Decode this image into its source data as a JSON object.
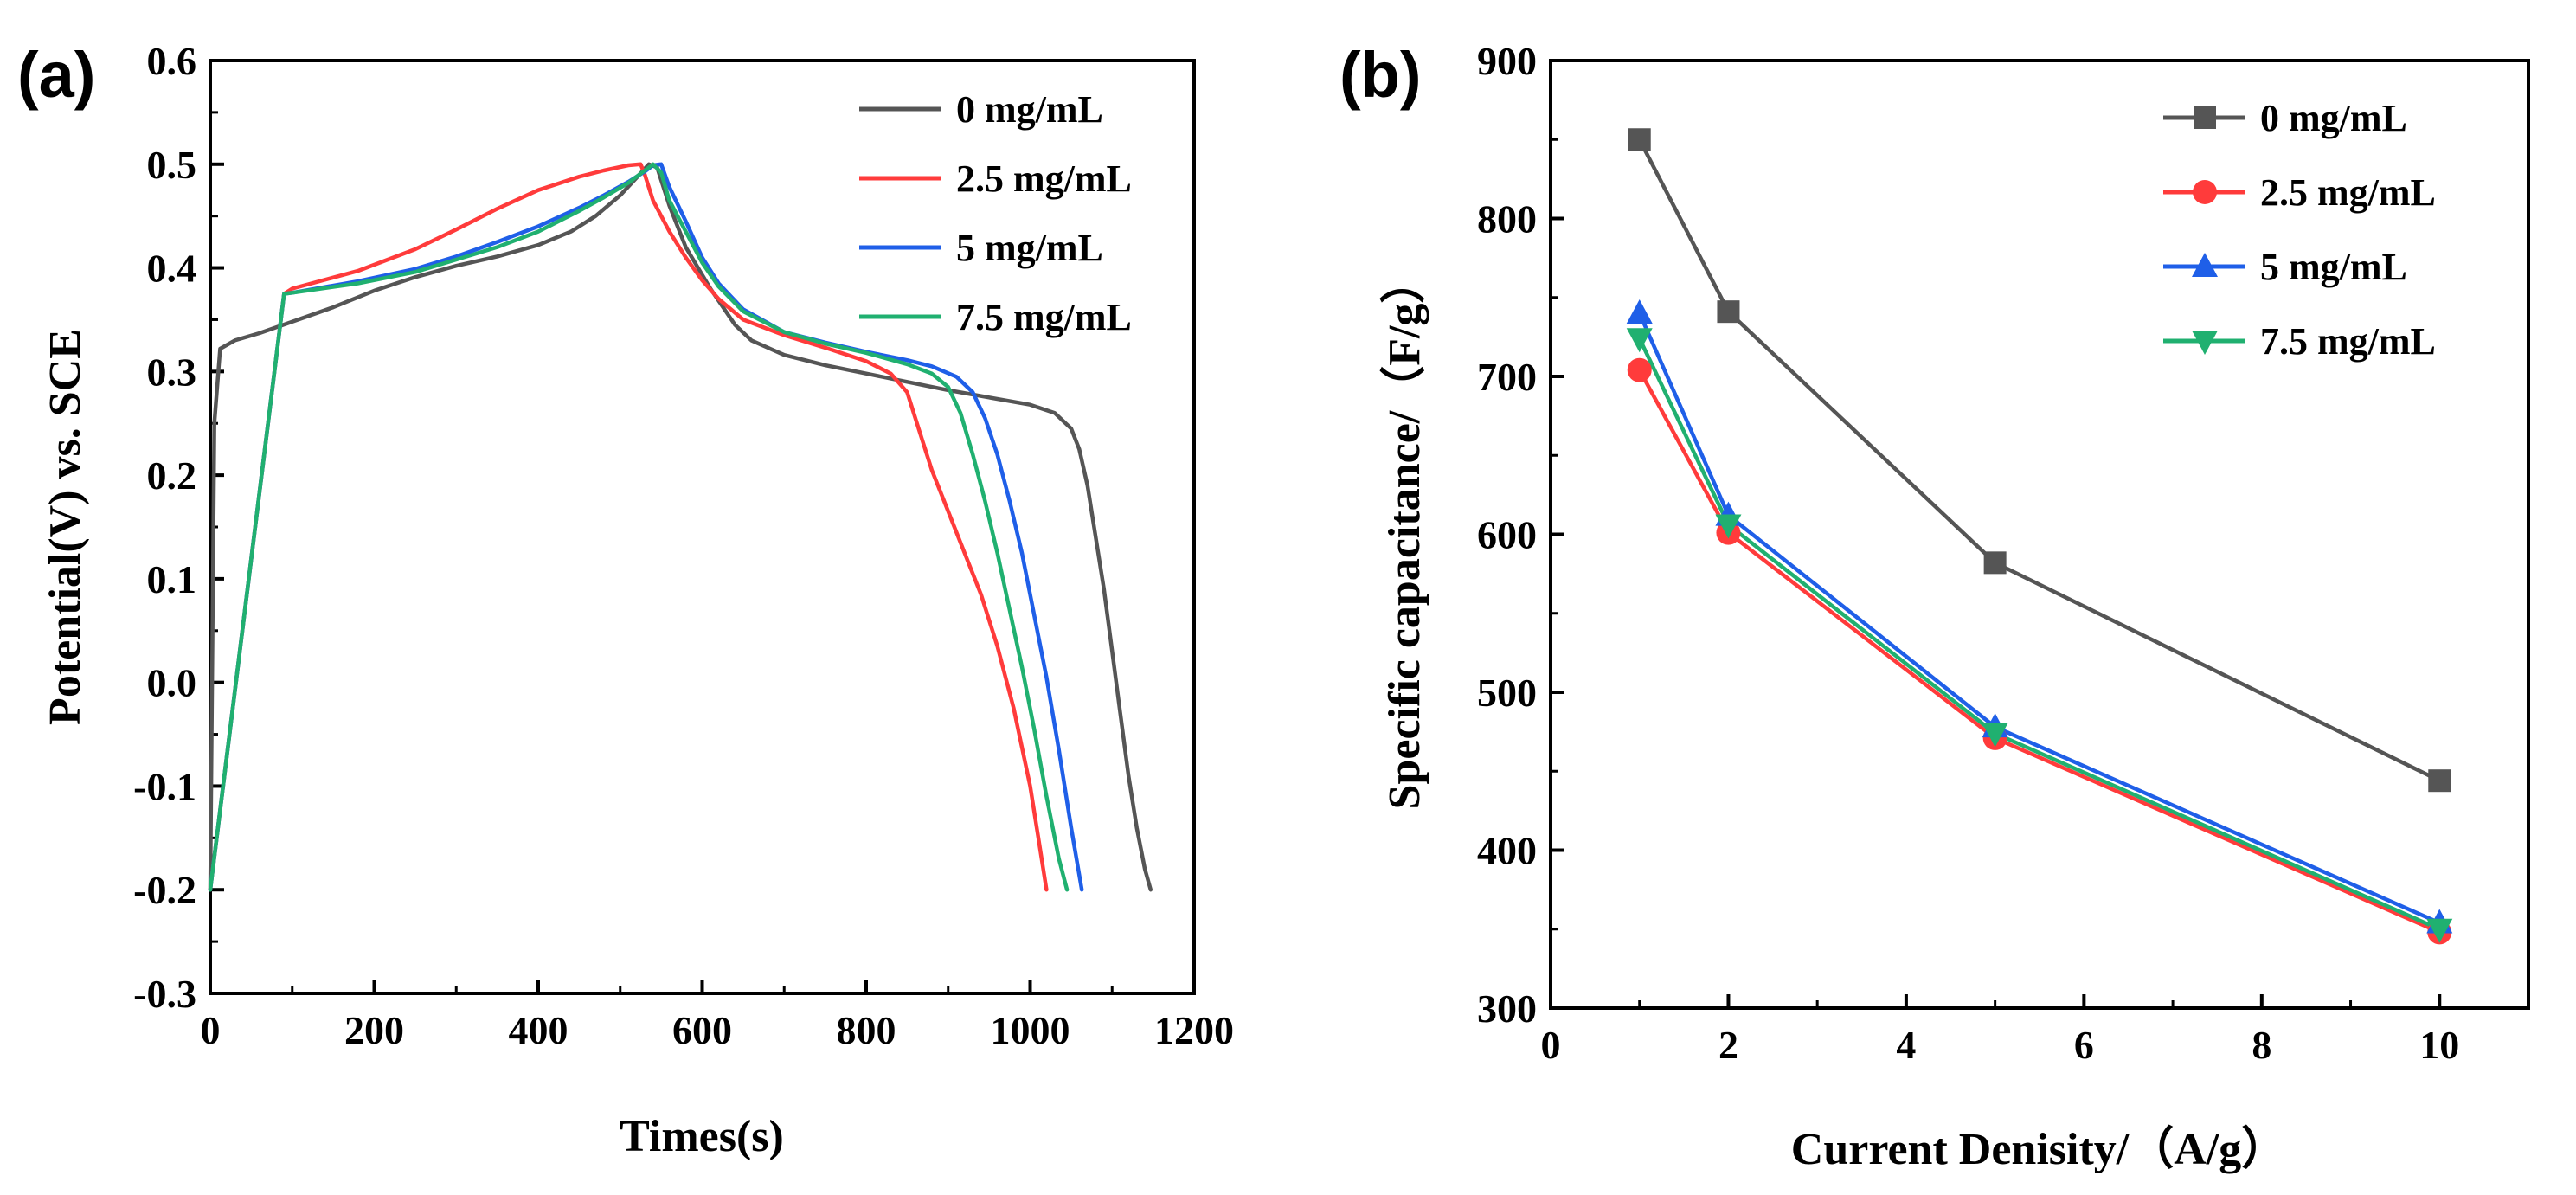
{
  "chart_data": [
    {
      "panel_label": "(a)",
      "type": "line",
      "xlabel": "Times(s)",
      "ylabel": "Potential(V) vs. SCE",
      "xlim": [
        0,
        1200
      ],
      "ylim": [
        -0.3,
        0.6
      ],
      "xticks": [
        "0",
        "200",
        "400",
        "600",
        "800",
        "1000",
        "1200"
      ],
      "yticks": [
        "-0.3",
        "-0.2",
        "-0.1",
        "0.0",
        "0.1",
        "0.2",
        "0.3",
        "0.4",
        "0.5",
        "0.6"
      ],
      "legend_position": "top-right",
      "series": [
        {
          "name": "0 mg/mL",
          "color": "#555555",
          "x": [
            0,
            5,
            12,
            30,
            60,
            100,
            150,
            200,
            250,
            300,
            350,
            400,
            440,
            470,
            500,
            520,
            535,
            545,
            560,
            580,
            610,
            640,
            660,
            700,
            750,
            800,
            850,
            900,
            950,
            1000,
            1030,
            1050,
            1060,
            1070,
            1080,
            1090,
            1100,
            1110,
            1120,
            1130,
            1140,
            1147
          ],
          "y": [
            -0.2,
            0.25,
            0.322,
            0.33,
            0.337,
            0.348,
            0.362,
            0.378,
            0.391,
            0.402,
            0.411,
            0.422,
            0.435,
            0.45,
            0.47,
            0.487,
            0.5,
            0.497,
            0.46,
            0.42,
            0.38,
            0.345,
            0.33,
            0.316,
            0.306,
            0.298,
            0.29,
            0.282,
            0.275,
            0.268,
            0.26,
            0.245,
            0.225,
            0.19,
            0.14,
            0.09,
            0.03,
            -0.03,
            -0.09,
            -0.14,
            -0.18,
            -0.2
          ]
        },
        {
          "name": "2.5 mg/mL",
          "color": "#ff3b3b",
          "x": [
            0,
            90,
            100,
            180,
            250,
            300,
            350,
            400,
            450,
            480,
            510,
            525,
            530,
            540,
            560,
            580,
            600,
            620,
            650,
            700,
            750,
            800,
            830,
            850,
            860,
            870,
            880,
            900,
            920,
            940,
            960,
            980,
            1000,
            1010,
            1020
          ],
          "y": [
            -0.2,
            0.375,
            0.38,
            0.397,
            0.418,
            0.437,
            0.457,
            0.475,
            0.488,
            0.494,
            0.499,
            0.5,
            0.49,
            0.465,
            0.435,
            0.41,
            0.388,
            0.37,
            0.35,
            0.335,
            0.323,
            0.31,
            0.298,
            0.28,
            0.255,
            0.23,
            0.205,
            0.165,
            0.125,
            0.085,
            0.035,
            -0.025,
            -0.1,
            -0.15,
            -0.2
          ]
        },
        {
          "name": "5 mg/mL",
          "color": "#1f5fe8",
          "x": [
            0,
            90,
            100,
            180,
            250,
            300,
            350,
            400,
            450,
            480,
            510,
            530,
            540,
            550,
            560,
            580,
            600,
            620,
            650,
            700,
            750,
            800,
            850,
            880,
            910,
            930,
            945,
            960,
            975,
            990,
            1005,
            1020,
            1035,
            1050,
            1063
          ],
          "y": [
            -0.2,
            0.375,
            0.376,
            0.387,
            0.399,
            0.411,
            0.425,
            0.44,
            0.458,
            0.47,
            0.483,
            0.493,
            0.499,
            0.5,
            0.478,
            0.445,
            0.41,
            0.385,
            0.36,
            0.338,
            0.328,
            0.319,
            0.311,
            0.305,
            0.295,
            0.28,
            0.255,
            0.22,
            0.175,
            0.125,
            0.065,
            0.005,
            -0.065,
            -0.14,
            -0.2
          ]
        },
        {
          "name": "7.5 mg/mL",
          "color": "#20b070",
          "x": [
            0,
            90,
            100,
            180,
            250,
            300,
            350,
            400,
            450,
            480,
            510,
            530,
            540,
            550,
            560,
            580,
            600,
            620,
            650,
            700,
            750,
            800,
            850,
            880,
            900,
            915,
            930,
            945,
            960,
            975,
            990,
            1005,
            1020,
            1035,
            1045
          ],
          "y": [
            -0.2,
            0.375,
            0.376,
            0.385,
            0.396,
            0.408,
            0.42,
            0.435,
            0.455,
            0.468,
            0.482,
            0.494,
            0.5,
            0.492,
            0.465,
            0.435,
            0.405,
            0.382,
            0.358,
            0.338,
            0.327,
            0.318,
            0.307,
            0.298,
            0.285,
            0.26,
            0.22,
            0.175,
            0.125,
            0.07,
            0.015,
            -0.045,
            -0.11,
            -0.17,
            -0.2
          ]
        }
      ]
    },
    {
      "panel_label": "(b)",
      "type": "line",
      "xlabel": "Current Denisity/（A/g）",
      "ylabel": "Specific capacitance/（F/g）",
      "xlim": [
        0,
        11
      ],
      "ylim": [
        300,
        900
      ],
      "xticks": [
        "0",
        "2",
        "4",
        "6",
        "8",
        "10"
      ],
      "yticks": [
        "300",
        "400",
        "500",
        "600",
        "700",
        "800",
        "900"
      ],
      "legend_position": "top-right",
      "x": [
        1,
        2,
        5,
        10
      ],
      "series": [
        {
          "name": "0 mg/mL",
          "color": "#555555",
          "marker": "square",
          "values": [
            850,
            741,
            582,
            444
          ]
        },
        {
          "name": "2.5 mg/mL",
          "color": "#ff3b3b",
          "marker": "circle",
          "values": [
            704,
            601,
            471,
            348
          ]
        },
        {
          "name": "5 mg/mL",
          "color": "#1f5fe8",
          "marker": "triangle-up",
          "values": [
            740,
            612,
            478,
            354
          ]
        },
        {
          "name": "7.5 mg/mL",
          "color": "#20b070",
          "marker": "triangle-down",
          "values": [
            724,
            606,
            474,
            350
          ]
        }
      ]
    }
  ]
}
